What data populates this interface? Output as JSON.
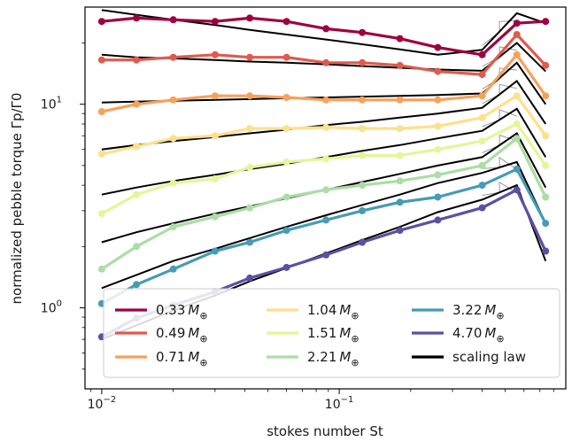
{
  "chart_data": {
    "type": "line",
    "xlabel": "stokes number St",
    "ylabel": "normalized pebble torque Γp/Γ0",
    "xscale": "log",
    "yscale": "log",
    "xlim": [
      0.0085,
      0.9
    ],
    "ylim": [
      0.4,
      30
    ],
    "grid": false,
    "legend_position": "lower-right",
    "x_ticks": [
      {
        "value": 0.01,
        "base": "10",
        "exp": "−2"
      },
      {
        "value": 0.1,
        "base": "10",
        "exp": "−1"
      }
    ],
    "y_ticks": [
      {
        "value": 1,
        "base": "10",
        "exp": "0"
      },
      {
        "value": 10,
        "base": "10",
        "exp": "1"
      }
    ],
    "x": [
      0.01,
      0.014,
      0.02,
      0.03,
      0.042,
      0.06,
      0.088,
      0.125,
      0.18,
      0.26,
      0.4,
      0.56,
      0.74
    ],
    "series": [
      {
        "name": "0.33",
        "unit": "M",
        "sub": "⊕",
        "color": "#9e0142",
        "values": [
          25.5,
          26.5,
          26.0,
          25.5,
          26.5,
          25.5,
          23.5,
          22.5,
          21.0,
          19.0,
          17.5,
          25.0,
          25.5
        ],
        "fit": [
          29.0,
          27.5,
          26.0,
          24.5,
          23.2,
          22.0,
          20.8,
          19.7,
          18.6,
          17.5,
          18.5,
          28.0,
          25.0
        ]
      },
      {
        "name": "0.49",
        "unit": "M",
        "sub": "⊕",
        "color": "#e05a4e",
        "values": [
          16.5,
          16.5,
          17.0,
          17.5,
          17.0,
          17.0,
          16.0,
          16.0,
          15.5,
          14.5,
          14.0,
          22.0,
          15.5
        ],
        "fit": [
          17.5,
          17.0,
          16.8,
          16.5,
          16.2,
          16.0,
          15.7,
          15.4,
          15.1,
          14.8,
          14.6,
          20.0,
          14.5
        ]
      },
      {
        "name": "0.71",
        "unit": "M",
        "sub": "⊕",
        "color": "#f7a15a",
        "values": [
          9.2,
          10.0,
          10.5,
          11.0,
          11.0,
          10.8,
          10.5,
          10.5,
          10.5,
          10.5,
          11.0,
          17.5,
          11.0
        ],
        "fit": [
          10.2,
          10.3,
          10.4,
          10.5,
          10.6,
          10.7,
          10.8,
          10.9,
          11.0,
          11.1,
          11.3,
          16.0,
          10.0
        ]
      },
      {
        "name": "1.04",
        "unit": "M",
        "sub": "⊕",
        "color": "#fee08b",
        "values": [
          5.7,
          6.2,
          6.8,
          7.0,
          7.6,
          7.6,
          7.7,
          7.6,
          7.6,
          7.8,
          8.6,
          11.0,
          7.0
        ],
        "fit": [
          6.0,
          6.3,
          6.6,
          6.9,
          7.2,
          7.5,
          7.9,
          8.2,
          8.6,
          9.0,
          9.6,
          13.0,
          8.0
        ]
      },
      {
        "name": "1.51",
        "unit": "M",
        "sub": "⊕",
        "color": "#e6f598",
        "values": [
          2.9,
          3.6,
          4.1,
          4.3,
          4.9,
          5.2,
          5.4,
          5.6,
          5.6,
          6.0,
          6.6,
          8.0,
          5.0
        ],
        "fit": [
          3.6,
          3.9,
          4.2,
          4.5,
          4.8,
          5.1,
          5.5,
          5.9,
          6.3,
          6.8,
          7.4,
          9.5,
          5.5
        ]
      },
      {
        "name": "2.21",
        "unit": "M",
        "sub": "⊕",
        "color": "#abdda4",
        "values": [
          1.55,
          2.0,
          2.5,
          2.8,
          3.1,
          3.5,
          3.8,
          4.0,
          4.2,
          4.5,
          5.0,
          6.8,
          3.5
        ],
        "fit": [
          2.1,
          2.35,
          2.6,
          2.9,
          3.15,
          3.45,
          3.8,
          4.15,
          4.55,
          5.0,
          5.5,
          7.2,
          3.9
        ]
      },
      {
        "name": "3.22",
        "unit": "M",
        "sub": "⊕",
        "color": "#449cb5",
        "values": [
          1.05,
          1.3,
          1.55,
          1.9,
          2.1,
          2.4,
          2.7,
          3.0,
          3.3,
          3.5,
          4.0,
          4.8,
          2.6
        ],
        "fit": [
          1.25,
          1.45,
          1.7,
          1.95,
          2.2,
          2.5,
          2.85,
          3.2,
          3.6,
          4.1,
          4.6,
          5.2,
          2.6
        ]
      },
      {
        "name": "4.70",
        "unit": "M",
        "sub": "⊕",
        "color": "#5e4fa2",
        "values": [
          0.72,
          0.89,
          1.03,
          1.2,
          1.4,
          1.58,
          1.82,
          2.1,
          2.4,
          2.7,
          3.1,
          3.8,
          1.9
        ],
        "fit": [
          0.7,
          0.82,
          0.97,
          1.15,
          1.35,
          1.57,
          1.85,
          2.15,
          2.5,
          2.95,
          3.4,
          4.0,
          1.7
        ]
      }
    ],
    "scaling_law_label": "scaling law",
    "scaling_law_color": "#000000"
  }
}
